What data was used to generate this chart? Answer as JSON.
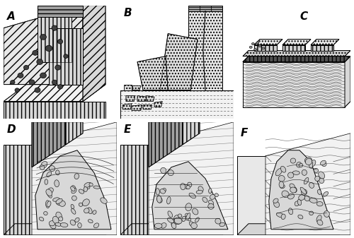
{
  "panels": [
    "A",
    "B",
    "C",
    "D",
    "E",
    "F"
  ],
  "bg_color": "#ffffff",
  "label_color": "#000000",
  "label_fontsize": 11,
  "fig_width": 5.0,
  "fig_height": 3.37,
  "dpi": 100,
  "gray_light": "#f2f2f2",
  "gray_mid": "#d8d8d8",
  "gray_dark": "#a0a0a0",
  "gray_vdark": "#404040",
  "black": "#000000",
  "white": "#ffffff"
}
